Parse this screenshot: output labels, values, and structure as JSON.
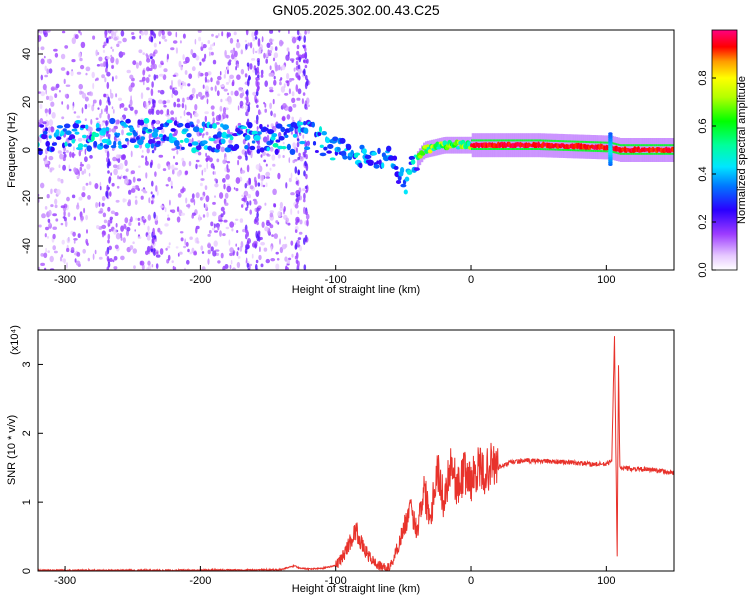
{
  "title": "GN05.2025.302.00.43.C25",
  "chart_data": [
    {
      "type": "heatmap",
      "name": "spectrogram",
      "xlabel": "Height of straight line (km)",
      "ylabel": "Frequency (Hz)",
      "xlim": [
        -320,
        150
      ],
      "ylim": [
        -50,
        50
      ],
      "xticks": [
        -300,
        -200,
        -100,
        0,
        100
      ],
      "yticks": [
        -40,
        -20,
        0,
        20,
        40
      ],
      "colorbar": {
        "label": "Normalized spectral amplitude",
        "range": [
          0,
          1
        ],
        "ticks": [
          0.0,
          0.2,
          0.4,
          0.6,
          0.8
        ]
      },
      "ridge_x": [
        -320,
        -250,
        -150,
        -120,
        -100,
        -85,
        -70,
        -60,
        -48,
        -45,
        -35,
        -20,
        0,
        50,
        103,
        110,
        150
      ],
      "ridge_y": [
        5,
        7,
        4,
        6,
        1,
        -2,
        -4,
        -3,
        -15,
        -8,
        0,
        2,
        2,
        2,
        1,
        0,
        0
      ]
    },
    {
      "type": "line",
      "name": "snr",
      "xlabel": "Height of straight line (km)",
      "ylabel": "SNR (10 * v/v)",
      "multiplier": "(x10⁴)",
      "xlim": [
        -320,
        150
      ],
      "ylim": [
        0,
        3.5
      ],
      "xticks": [
        -300,
        -200,
        -100,
        0,
        100
      ],
      "yticks": [
        0,
        1,
        2,
        3
      ],
      "series": [
        {
          "name": "SNR",
          "color": "#e8322b",
          "x": [
            -320,
            -200,
            -140,
            -130,
            -128,
            -120,
            -110,
            -100,
            -95,
            -90,
            -85,
            -80,
            -75,
            -70,
            -65,
            -60,
            -55,
            -50,
            -45,
            -40,
            -35,
            -30,
            -25,
            -20,
            -15,
            -10,
            -5,
            0,
            5,
            10,
            15,
            20,
            30,
            40,
            50,
            70,
            90,
            100,
            104,
            106,
            108,
            109,
            110,
            112,
            120,
            135,
            150
          ],
          "y": [
            0.01,
            0.01,
            0.02,
            0.08,
            0.05,
            0.03,
            0.04,
            0.08,
            0.2,
            0.4,
            0.6,
            0.35,
            0.2,
            0.1,
            0.05,
            0.05,
            0.3,
            0.6,
            0.9,
            0.6,
            1.2,
            0.8,
            1.5,
            1.0,
            1.6,
            1.2,
            1.45,
            1.3,
            1.5,
            1.4,
            1.55,
            1.5,
            1.58,
            1.6,
            1.6,
            1.58,
            1.55,
            1.55,
            1.6,
            3.4,
            0.2,
            3.0,
            1.5,
            1.5,
            1.48,
            1.47,
            1.42
          ]
        }
      ]
    }
  ]
}
